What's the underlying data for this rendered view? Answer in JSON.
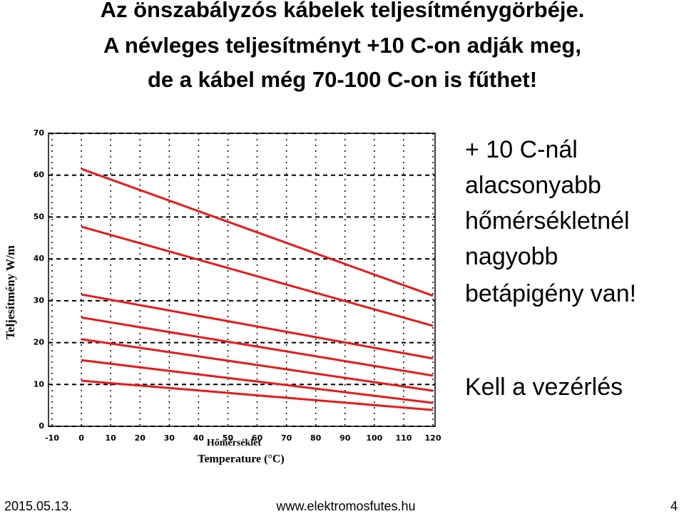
{
  "slide": {
    "title": [
      "Az önszabályzós kábelek teljesítménygörbéje.",
      "A névleges teljesítményt +10 C-on adják meg,",
      "de a kábel még 70-100 C-on is fűthet!"
    ],
    "side_text": [
      "+ 10 C-nál",
      "alacsonyabb",
      "hőmérsékletnél",
      "nagyobb",
      "betápigény van!"
    ],
    "note": "Kell a vezérlés",
    "footer": {
      "date": "2015.05.13.",
      "url": "www.elektromosfutes.hu",
      "page": "4"
    }
  },
  "chart_data": {
    "type": "line",
    "y_label": "Teljesítmény W/m",
    "x_label": [
      "Hőmérséklet",
      "Temperature (°C)"
    ],
    "x": [
      0,
      120
    ],
    "color": "#e8191b",
    "series": [
      {
        "values": [
          61.5,
          31.2
        ]
      },
      {
        "values": [
          47.7,
          24
        ]
      },
      {
        "values": [
          31.5,
          16.2
        ]
      },
      {
        "values": [
          26,
          12.1
        ]
      },
      {
        "values": [
          20.8,
          8.5
        ]
      },
      {
        "values": [
          15.8,
          5.6
        ]
      },
      {
        "values": [
          10.9,
          3.9
        ]
      }
    ],
    "xlim": [
      -10,
      120
    ],
    "xticks": [
      -10,
      0,
      10,
      20,
      30,
      40,
      50,
      60,
      70,
      80,
      90,
      100,
      110,
      120
    ],
    "ylim": [
      0,
      70
    ],
    "yticks": [
      0,
      10,
      20,
      30,
      40,
      50,
      60,
      70
    ],
    "grid": true
  }
}
